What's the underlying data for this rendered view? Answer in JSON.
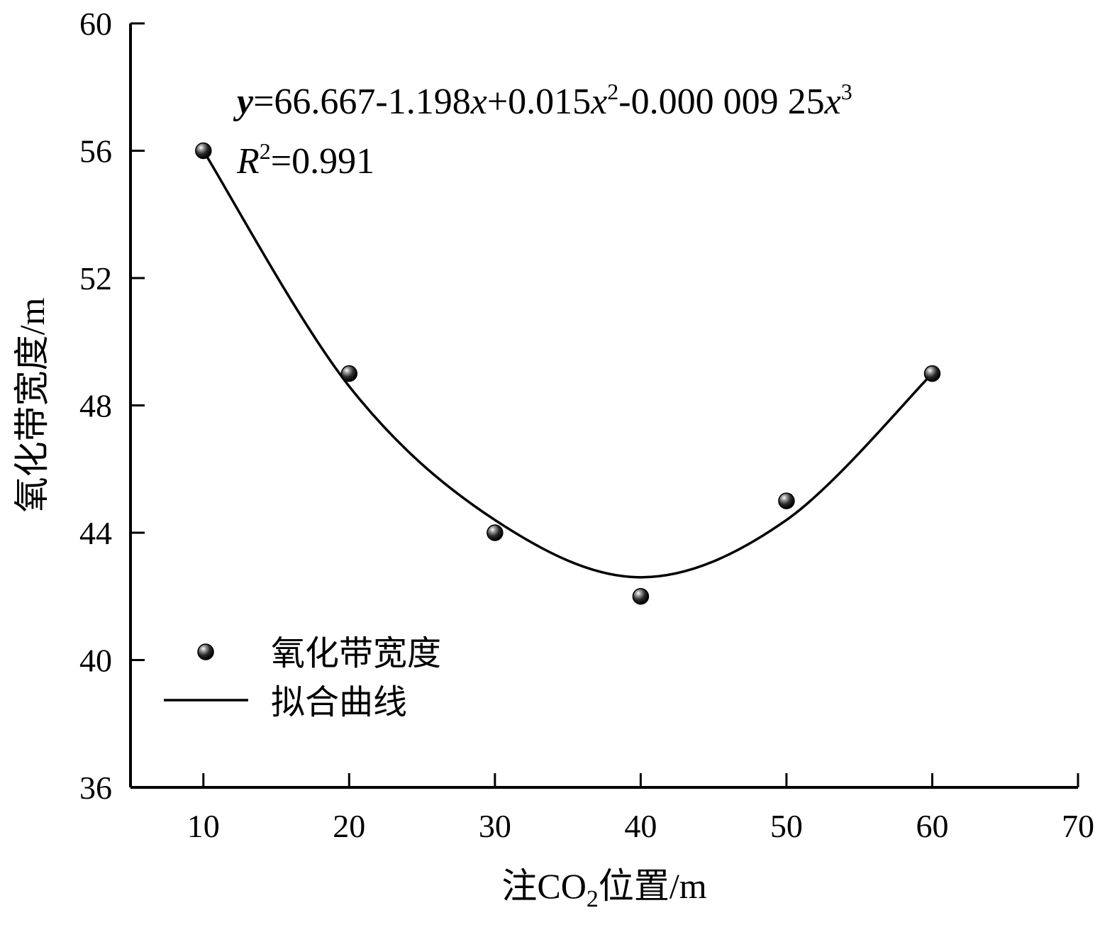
{
  "chart_data": {
    "type": "scatter",
    "title": "",
    "xlabel": {
      "prefix": "注CO",
      "subscript": "2",
      "suffix": "位置/m"
    },
    "ylabel": "氧化带宽度/m",
    "xlim": [
      5,
      70
    ],
    "ylim": [
      36,
      60
    ],
    "x_ticks": [
      "10",
      "20",
      "30",
      "40",
      "50",
      "60",
      "70"
    ],
    "y_ticks": [
      "36",
      "40",
      "44",
      "48",
      "52",
      "56",
      "60"
    ],
    "grid": false,
    "legend_position": "lower-left",
    "series": [
      {
        "name": "氧化带宽度",
        "kind": "scatter",
        "x": [
          10,
          20,
          30,
          40,
          50,
          60
        ],
        "y": [
          56,
          49,
          44,
          42,
          45,
          49
        ]
      },
      {
        "name": "拟合曲线",
        "kind": "line",
        "equation_coeffs": {
          "a0": 66.667,
          "a1": -1.198,
          "a2": 0.015,
          "a3": -9.25e-06
        },
        "x": [
          10,
          20,
          30,
          40,
          50,
          60
        ],
        "y": [
          56.0,
          48.6,
          44.4,
          42.6,
          44.4,
          49.0
        ]
      }
    ],
    "annotations": {
      "equation": {
        "y": "y",
        "eq_part1": "=66.667-1.198",
        "x1": "x",
        "eq_part2": "+0.015",
        "x2": "x",
        "sup2": "2",
        "eq_part3": "-0.000 009 25",
        "x3": "x",
        "sup3": "3"
      },
      "r2": {
        "R": "R",
        "sup": "2",
        "value": "=0.991"
      }
    }
  }
}
